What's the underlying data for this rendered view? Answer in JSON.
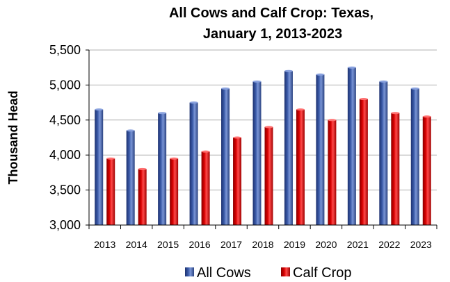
{
  "chart_data": {
    "type": "bar",
    "title_line1": "All Cows and Calf Crop: Texas,",
    "title_line2": "January 1, 2013-2023",
    "xlabel": "",
    "ylabel": "Thousand Head",
    "ylim": [
      3000,
      5500
    ],
    "yticks": [
      "3,000",
      "3,500",
      "4,000",
      "4,500",
      "5,000",
      "5,500"
    ],
    "ytick_values": [
      3000,
      3500,
      4000,
      4500,
      5000,
      5500
    ],
    "categories": [
      "2013",
      "2014",
      "2015",
      "2016",
      "2017",
      "2018",
      "2019",
      "2020",
      "2021",
      "2022",
      "2023"
    ],
    "series": [
      {
        "name": "All Cows",
        "color": "#3a5aa8",
        "values": [
          4650,
          4350,
          4600,
          4750,
          4950,
          5050,
          5200,
          5150,
          5250,
          5050,
          4950
        ]
      },
      {
        "name": "Calf Crop",
        "color": "#e00000",
        "values": [
          3950,
          3800,
          3950,
          4050,
          4250,
          4400,
          4650,
          4500,
          4800,
          4600,
          4550
        ]
      }
    ],
    "grid": true,
    "legend_position": "bottom"
  }
}
